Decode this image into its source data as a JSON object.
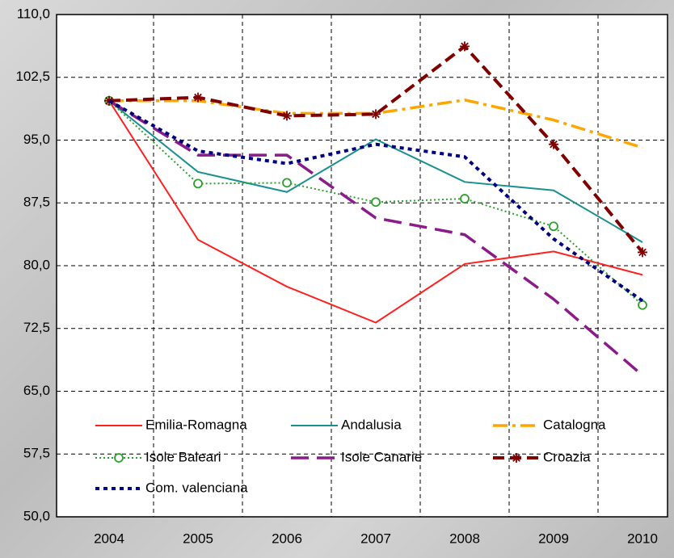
{
  "chart_data": {
    "type": "line",
    "categories": [
      "2004",
      "2005",
      "2006",
      "2007",
      "2008",
      "2009",
      "2010"
    ],
    "ylim": [
      50,
      110
    ],
    "yticks": [
      {
        "value": 50,
        "label": "50,0"
      },
      {
        "value": 57.5,
        "label": "57,5"
      },
      {
        "value": 65,
        "label": "65,0"
      },
      {
        "value": 72.5,
        "label": "72,5"
      },
      {
        "value": 80,
        "label": "80,0"
      },
      {
        "value": 87.5,
        "label": "87,5"
      },
      {
        "value": 95,
        "label": "95,0"
      },
      {
        "value": 102.5,
        "label": "102,5"
      },
      {
        "value": 110,
        "label": "110,0"
      }
    ],
    "grid": true,
    "series": [
      {
        "name": "Emilia-Romagna",
        "color": "#ff2020",
        "dash": "solid",
        "values": [
          99.7,
          83.1,
          77.5,
          73.2,
          80.2,
          81.7,
          78.9
        ]
      },
      {
        "name": "Andalusia",
        "color": "#1a9090",
        "dash": "solid",
        "values": [
          99.7,
          91.2,
          88.8,
          95.1,
          90.0,
          89.0,
          82.8
        ]
      },
      {
        "name": "Catalogna",
        "color": "#ffa500",
        "dash": "dashdot",
        "values": [
          99.7,
          99.7,
          98.2,
          98.2,
          99.8,
          97.4,
          94.1
        ]
      },
      {
        "name": "Isole Baleari",
        "color": "#2ca02c",
        "dash": "dot",
        "marker": "circle",
        "values": [
          99.7,
          89.8,
          89.9,
          87.6,
          88.0,
          84.7,
          75.3
        ]
      },
      {
        "name": "Isole Canarie",
        "color": "#8b1a8b",
        "dash": "longdash",
        "values": [
          99.7,
          93.2,
          93.2,
          85.7,
          83.7,
          76.0,
          66.9
        ]
      },
      {
        "name": "Croazia",
        "color": "#800000",
        "dash": "dash",
        "marker": "star",
        "values": [
          99.7,
          100.1,
          97.9,
          98.1,
          106.2,
          94.5,
          81.6
        ]
      },
      {
        "name": "Com. valenciana",
        "color": "#000080",
        "dash": "squaredot",
        "values": [
          99.7,
          93.7,
          92.2,
          94.5,
          93.0,
          83.2,
          75.8
        ]
      }
    ]
  }
}
